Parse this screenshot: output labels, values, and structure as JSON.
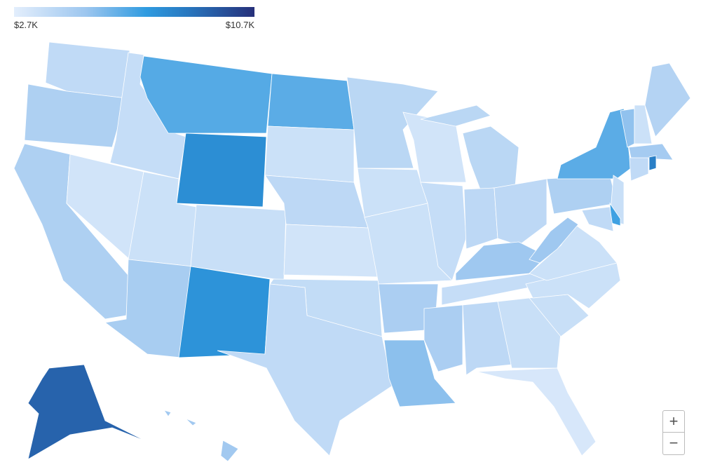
{
  "chart_data": {
    "type": "choropleth",
    "legend": {
      "min": {
        "value": 2700,
        "label": "$2.7K"
      },
      "max": {
        "value": 10700,
        "label": "$10.7K"
      },
      "color_stops": [
        [
          0,
          "#e3eefc"
        ],
        [
          0.3,
          "#9cc6ef"
        ],
        [
          0.55,
          "#2f9be0"
        ],
        [
          0.72,
          "#2878c0"
        ],
        [
          1,
          "#26307a"
        ]
      ]
    },
    "values": [
      3900,
      4500,
      4500,
      3300,
      3700,
      6400,
      7600,
      3500,
      4700,
      3600,
      7400,
      6300,
      3500,
      4000,
      3300,
      3800,
      3900,
      4100,
      3500,
      3500,
      4600,
      5400,
      3300,
      3700,
      4100,
      4000,
      4000,
      5000,
      3700,
      4600,
      4000,
      3600,
      3100,
      3600,
      3500,
      3500,
      5000,
      4500,
      6300,
      5300,
      3500,
      4300,
      4800,
      3900,
      8200,
      3600,
      6800,
      3900,
      9100,
      4900
    ],
    "controls": {
      "zoom_in": "+",
      "zoom_out": "−"
    }
  }
}
